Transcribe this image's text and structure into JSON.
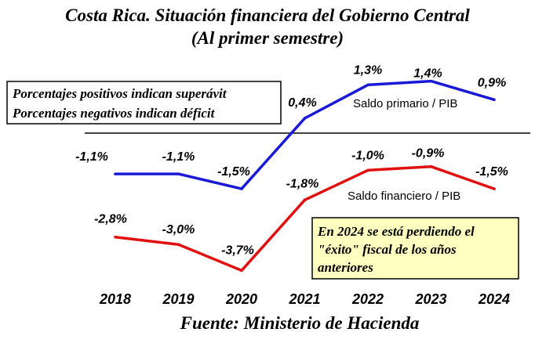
{
  "title": "Costa Rica. Situación financiera del Gobierno Central",
  "subtitle": "(Al primer semestre)",
  "note": {
    "lines": [
      "Porcentajes positivos indican superávit",
      "Porcentajes negativos indican déficit"
    ]
  },
  "callout": {
    "lines": [
      "En 2024 se está perdiendo el",
      "\"éxito\" fiscal de los años",
      "anteriores"
    ],
    "background": "#ffffc0"
  },
  "source": "Fuente: Ministerio de Hacienda",
  "chart_data": {
    "type": "line",
    "x": [
      "2018",
      "2019",
      "2020",
      "2021",
      "2022",
      "2023",
      "2024"
    ],
    "series": [
      {
        "name": "Saldo primario / PIB",
        "color": "#1a1ad6",
        "values": [
          -1.1,
          -1.1,
          -1.5,
          0.4,
          1.3,
          1.4,
          0.9
        ],
        "labels": [
          "-1,1%",
          "-1,1%",
          "-1,5%",
          "0,4%",
          "1,3%",
          "1,4%",
          "0,9%"
        ]
      },
      {
        "name": "Saldo financiero / PIB",
        "color": "#e01010",
        "values": [
          -2.8,
          -3.0,
          -3.7,
          -1.8,
          -1.0,
          -0.9,
          -1.5
        ],
        "labels": [
          "-2,8%",
          "-3,0%",
          "-3,7%",
          "-1,8%",
          "-1,0%",
          "-0,9%",
          "-1,5%"
        ]
      }
    ],
    "zero_line": true,
    "grid": false
  }
}
